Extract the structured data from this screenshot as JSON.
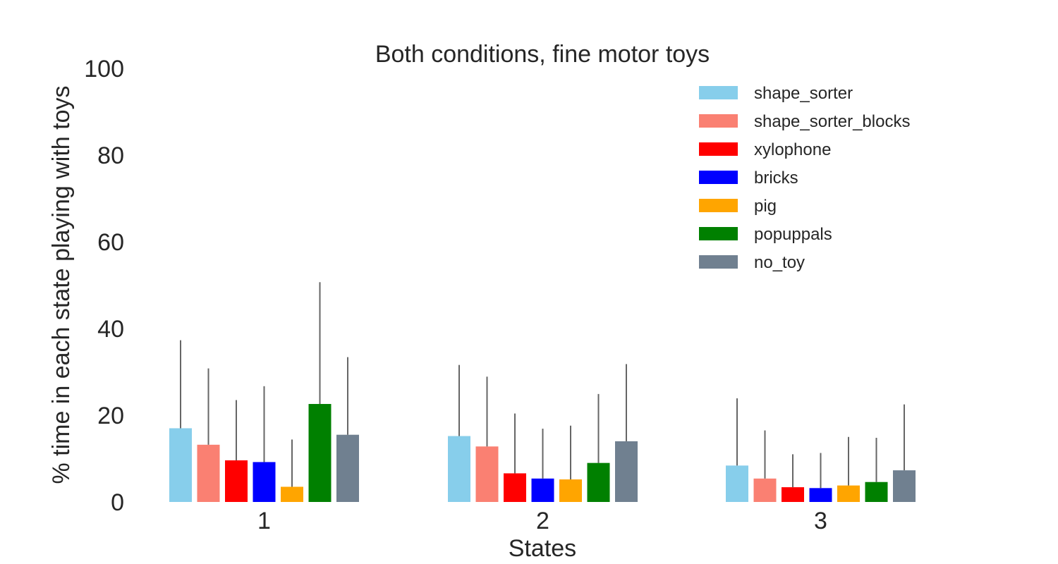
{
  "chart_data": {
    "type": "bar",
    "title": "Both conditions, fine motor toys",
    "xlabel": "States",
    "ylabel": "% time in each state playing with toys",
    "categories": [
      "1",
      "2",
      "3"
    ],
    "ylim": [
      0,
      100
    ],
    "yticks": [
      "0",
      "20",
      "40",
      "60",
      "80",
      "100"
    ],
    "grid": false,
    "legend_position": "top-right",
    "error_bars": "upper only",
    "error_bar_color": "#666666",
    "series": [
      {
        "name": "shape_sorter",
        "color": "#87ceeb",
        "values": [
          17.0,
          15.2,
          8.4
        ],
        "error_upper": [
          37.3,
          31.6,
          23.9
        ]
      },
      {
        "name": "shape_sorter_blocks",
        "color": "#fa8072",
        "values": [
          13.2,
          12.8,
          5.4
        ],
        "error_upper": [
          30.8,
          28.9,
          16.5
        ]
      },
      {
        "name": "xylophone",
        "color": "#ff0000",
        "values": [
          9.6,
          6.6,
          3.4
        ],
        "error_upper": [
          23.5,
          20.4,
          11.0
        ]
      },
      {
        "name": "bricks",
        "color": "#0000ff",
        "values": [
          9.2,
          5.4,
          3.2
        ],
        "error_upper": [
          26.7,
          16.9,
          11.3
        ]
      },
      {
        "name": "pig",
        "color": "#ffa500",
        "values": [
          3.5,
          5.2,
          3.8
        ],
        "error_upper": [
          14.4,
          17.6,
          15.0
        ]
      },
      {
        "name": "popuppals",
        "color": "#008000",
        "values": [
          22.6,
          9.0,
          4.6
        ],
        "error_upper": [
          50.7,
          24.9,
          14.8
        ]
      },
      {
        "name": "no_toy",
        "color": "#708090",
        "values": [
          15.5,
          14.0,
          7.3
        ],
        "error_upper": [
          33.4,
          31.8,
          22.5
        ]
      }
    ]
  }
}
